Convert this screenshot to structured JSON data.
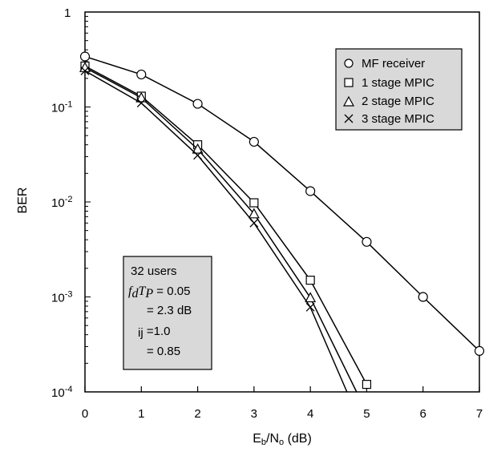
{
  "chart_data": {
    "type": "line",
    "xlabel_main": "E",
    "xlabel_sub1": "b",
    "xlabel_mid": "/N",
    "xlabel_sub2": "o",
    "xlabel_tail": " (dB)",
    "ylabel": "BER",
    "x_ticks": [
      "0",
      "1",
      "2",
      "3",
      "4",
      "5",
      "6",
      "7"
    ],
    "y_ticks": [
      {
        "value": 1,
        "base": "1",
        "exp": ""
      },
      {
        "value": 0.1,
        "base": "10",
        "exp": "-1"
      },
      {
        "value": 0.01,
        "base": "10",
        "exp": "-2"
      },
      {
        "value": 0.001,
        "base": "10",
        "exp": "-3"
      },
      {
        "value": 0.0001,
        "base": "10",
        "exp": "-4"
      }
    ],
    "xlim": [
      0,
      7
    ],
    "ylim": [
      0.0001,
      1
    ],
    "yscale": "log",
    "grid": false,
    "legend_position": "top-right",
    "series": [
      {
        "name": "MF receiver",
        "marker": "circle",
        "x": [
          0,
          1,
          2,
          3,
          4,
          5,
          6,
          7
        ],
        "y": [
          0.34,
          0.22,
          0.108,
          0.043,
          0.013,
          0.0038,
          0.001,
          0.00027
        ]
      },
      {
        "name": "1 stage MPIC",
        "marker": "square",
        "x": [
          0,
          1,
          2,
          3,
          4,
          5
        ],
        "y": [
          0.27,
          0.13,
          0.04,
          0.0098,
          0.0015,
          0.00012
        ]
      },
      {
        "name": "2 stage MPIC",
        "marker": "triangle",
        "x": [
          0,
          1,
          2,
          3,
          4,
          4.82
        ],
        "y": [
          0.26,
          0.125,
          0.036,
          0.0075,
          0.00098,
          0.0001
        ]
      },
      {
        "name": "3 stage MPIC",
        "marker": "x",
        "x": [
          0,
          1,
          2,
          3,
          4,
          4.65
        ],
        "y": [
          0.24,
          0.11,
          0.031,
          0.006,
          0.00078,
          0.0001
        ]
      }
    ],
    "annotation_box": {
      "line1": "32 users",
      "line2_f": "f",
      "line2_d": "d",
      "line2_T": "T",
      "line2_P": "P",
      "line2_val": " = 0.05",
      "line3": "= 2.3 dB",
      "line4_sub": "ij",
      "line4_val": " =1.0",
      "line5": "= 0.85",
      "fill": "#d9d9d9"
    }
  }
}
